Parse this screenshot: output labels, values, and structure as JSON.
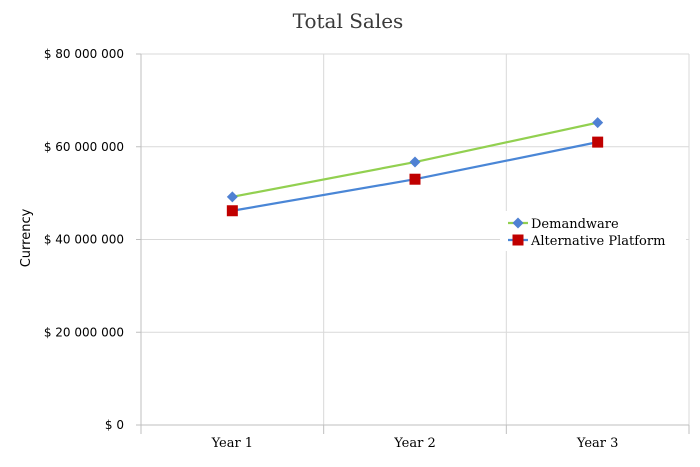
{
  "chart_data": {
    "type": "line",
    "title": "Total Sales",
    "xlabel": "",
    "ylabel": "Currency",
    "categories": [
      "Year 1",
      "Year 2",
      "Year 3"
    ],
    "y_tick_labels": [
      "$ 0",
      "$ 20 000 000",
      "$ 40 000 000",
      "$ 60 000 000",
      "$ 80 000 000"
    ],
    "y_ticks": [
      0,
      20000000,
      40000000,
      60000000,
      80000000
    ],
    "ylim": [
      0,
      80000000
    ],
    "grid": true,
    "legend_position": "right",
    "series": [
      {
        "name": "Demandware",
        "values": [
          49200000,
          56700000,
          65200000
        ],
        "line_color": "#92d050",
        "marker_color": "#4f81d3",
        "marker": "diamond"
      },
      {
        "name": "Alternative Platform",
        "values": [
          46200000,
          53000000,
          61000000
        ],
        "line_color": "#4a86d6",
        "marker_color": "#c00000",
        "marker": "square"
      }
    ]
  }
}
